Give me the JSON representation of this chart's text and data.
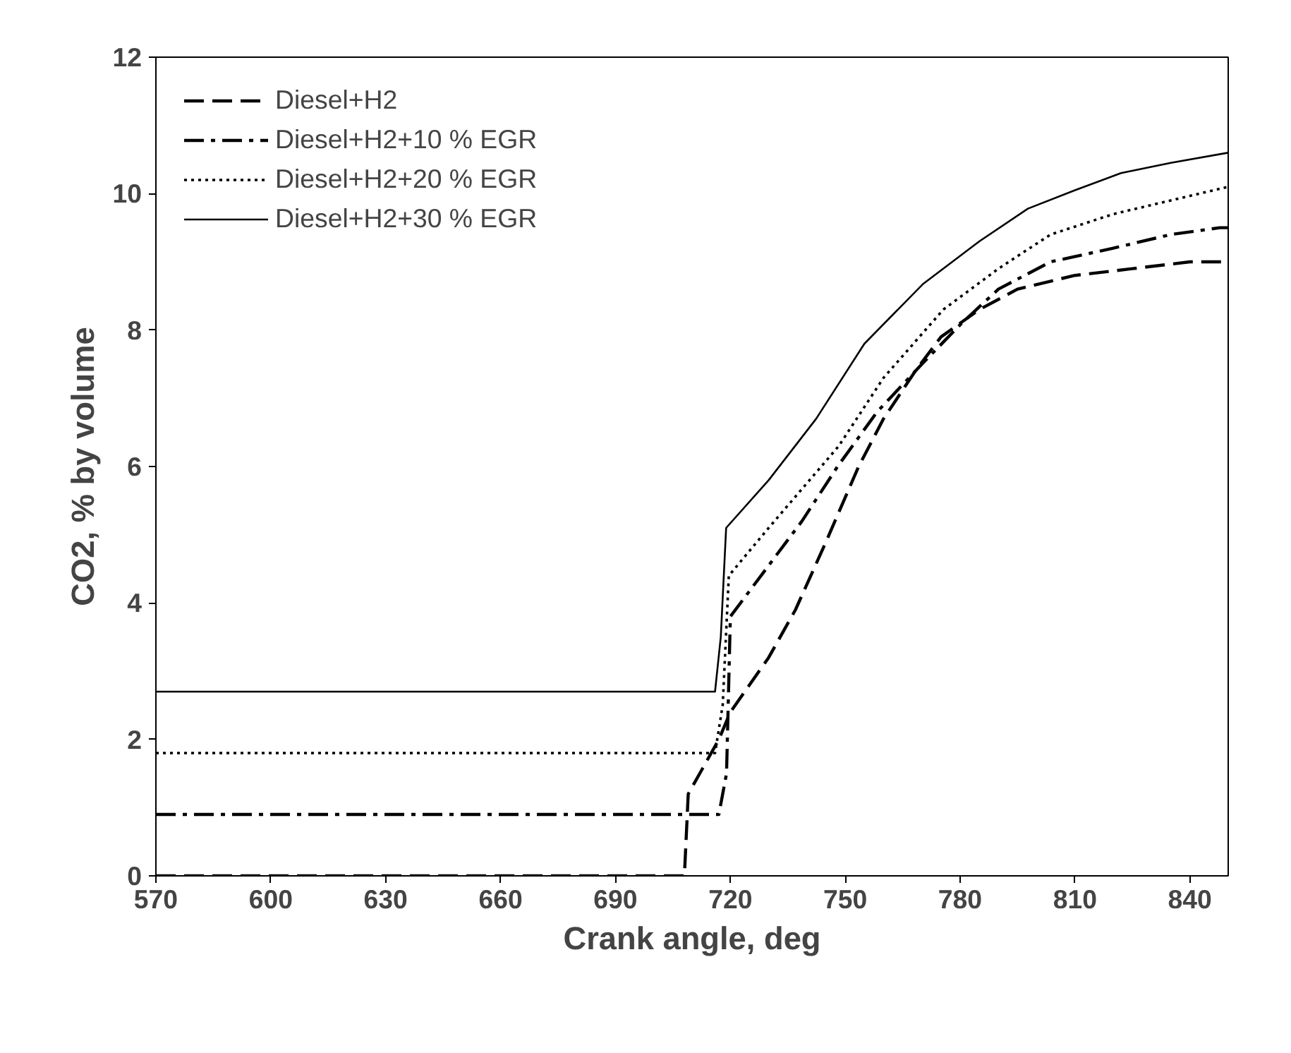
{
  "chart_data": {
    "type": "line",
    "xlabel": "Crank angle, deg",
    "ylabel": "CO2, % by volume",
    "xlim": [
      570,
      850
    ],
    "xticks": [
      570,
      600,
      630,
      660,
      690,
      720,
      750,
      780,
      810,
      840
    ],
    "ylim": [
      0,
      12
    ],
    "yticks": [
      0,
      2,
      4,
      6,
      8,
      10,
      12
    ],
    "grid": false,
    "legend": "top left",
    "marker": "none",
    "series": [
      {
        "name": "Diesel+H2",
        "color": "#000000",
        "line_style": "dashed",
        "x": [
          570,
          690,
          708,
          709,
          712,
          717,
          720,
          730,
          737,
          745,
          753.5,
          760,
          768.3,
          775,
          785,
          795,
          809.8,
          825,
          840,
          850
        ],
        "values": [
          0,
          0,
          0,
          1.2,
          1.5,
          2.0,
          2.4,
          3.2,
          3.9,
          4.9,
          6.0,
          6.7,
          7.4,
          7.9,
          8.3,
          8.6,
          8.8,
          8.9,
          9.0,
          9.0
        ]
      },
      {
        "name": "Diesel+H2+10 % EGR",
        "color": "#000000",
        "line_style": "dashdot",
        "x": [
          570,
          690,
          717,
          719,
          720,
          724,
          738.7,
          748,
          758.3,
          770,
          780.4,
          790,
          803.6,
          820,
          835,
          847.8,
          850
        ],
        "values": [
          0.9,
          0.9,
          0.9,
          1.5,
          3.8,
          4.1,
          5.2,
          6.0,
          6.8,
          7.5,
          8.1,
          8.6,
          9.0,
          9.2,
          9.4,
          9.5,
          9.5
        ]
      },
      {
        "name": "Diesel+H2+20 % EGR",
        "color": "#000000",
        "line_style": "dotted",
        "x": [
          570,
          690,
          716,
          718,
          719.6,
          730,
          748.3,
          760,
          775.6,
          790,
          803.6,
          820,
          835,
          850
        ],
        "values": [
          1.8,
          1.8,
          1.8,
          2.5,
          4.4,
          5.1,
          6.3,
          7.3,
          8.3,
          8.9,
          9.4,
          9.7,
          9.9,
          10.1
        ]
      },
      {
        "name": "Diesel+H2+30 % EGR",
        "color": "#000000",
        "line_style": "solid",
        "x": [
          570,
          690,
          716,
          717.5,
          718.9,
          730,
          742.4,
          755,
          770.4,
          785,
          797.7,
          810,
          822,
          835,
          850
        ],
        "values": [
          2.7,
          2.7,
          2.7,
          3.5,
          5.1,
          5.8,
          6.7,
          7.8,
          8.68,
          9.3,
          9.78,
          10.05,
          10.3,
          10.45,
          10.6
        ]
      }
    ]
  }
}
